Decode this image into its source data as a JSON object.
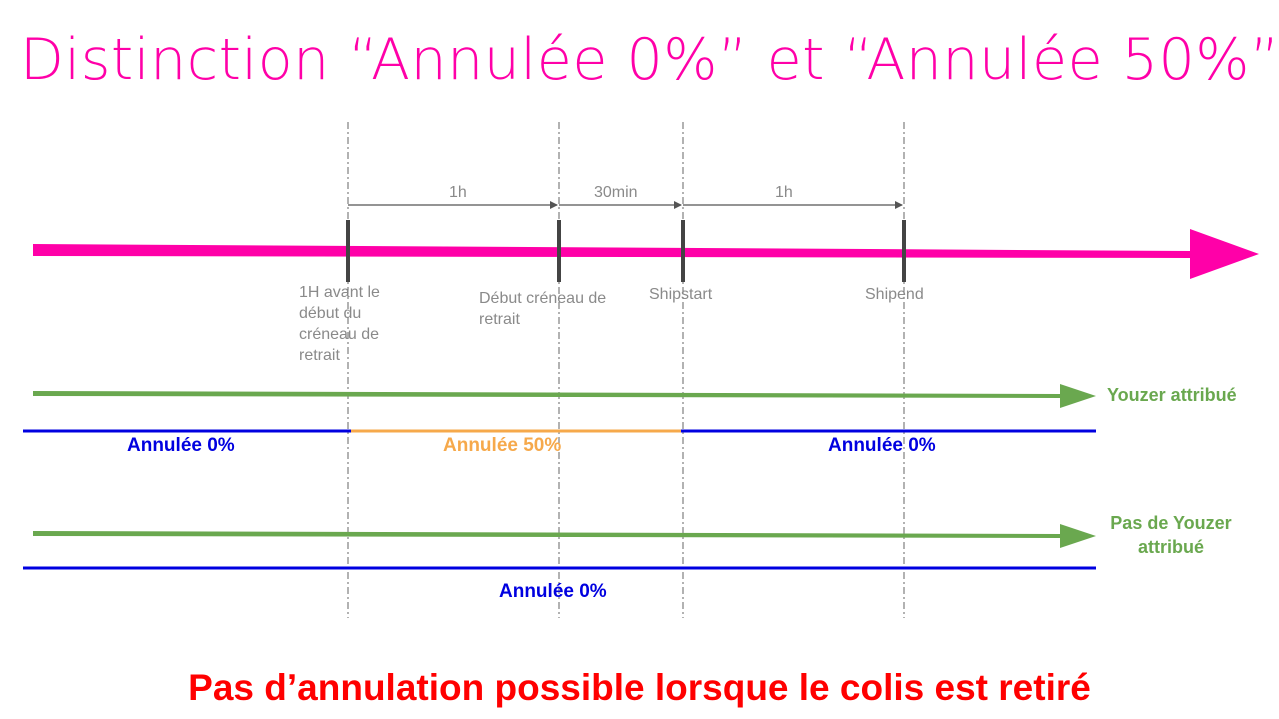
{
  "title": "Distinction “Annulée 0%” et “Annulée 50%”",
  "durations": {
    "d1": "1h",
    "d2": "30min",
    "d3": "1h"
  },
  "markers": {
    "m1": "1H avant le début du créneau de retrait",
    "m2": "Début créneau de retrait",
    "m3": "Shipstart",
    "m4": "Shipend"
  },
  "rows": {
    "youzer": {
      "label": "Youzer attribué",
      "zones": [
        "Annulée 0%",
        "Annulée 50%",
        "Annulée 0%"
      ]
    },
    "no_youzer": {
      "label": "Pas de Youzer attribué",
      "zone": "Annulée 0%"
    }
  },
  "footer": "Pas d’annulation possible lorsque le colis est retiré",
  "colors": {
    "title": "#ff00a8",
    "timeline": "#ff00a8",
    "green": "#6aa84f",
    "blue": "#0000e0",
    "orange": "#f6a94b",
    "red": "#ff0000",
    "gray": "#8a8a8a"
  }
}
